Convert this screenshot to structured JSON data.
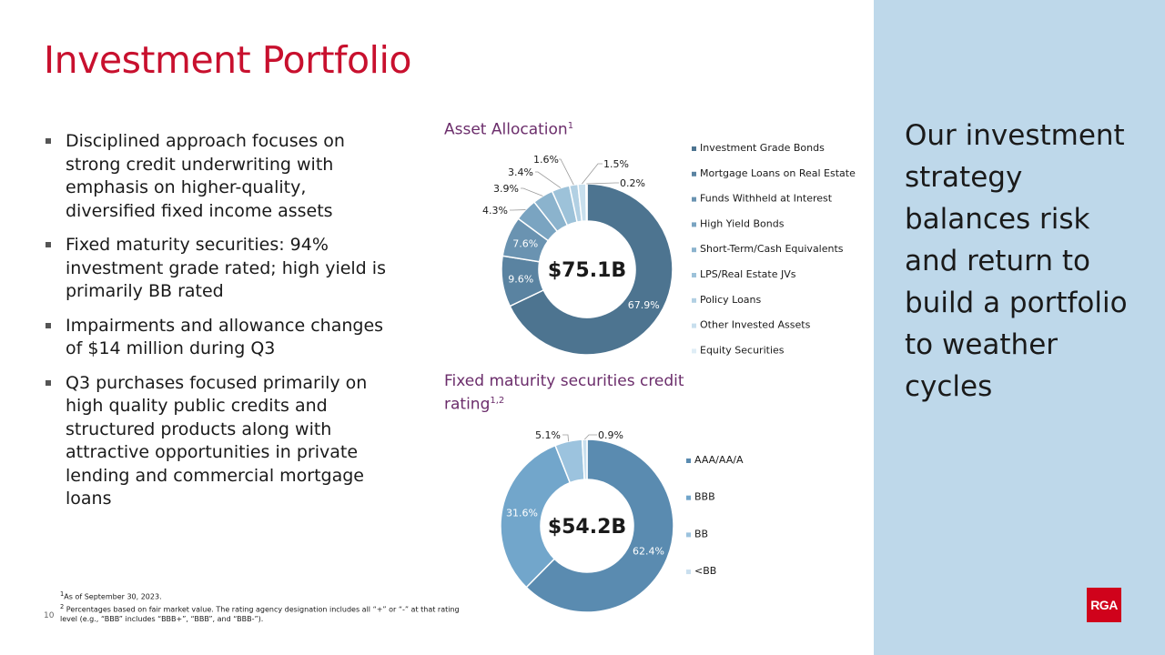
{
  "title": "Investment Portfolio",
  "bullets": [
    "Disciplined approach focuses on strong credit underwriting with emphasis on higher-quality, diversified fixed income assets",
    "Fixed maturity securities: 94% investment grade rated; high yield is primarily BB rated",
    "Impairments and allowance changes of $14 million during Q3",
    "Q3 purchases focused primarily on high quality public credits and structured products along with attractive opportunities in private lending and commercial mortgage loans"
  ],
  "sidebar": {
    "text": "Our investment strategy balances risk and return to build a portfolio to weather cycles"
  },
  "footnotes": {
    "note1": "As of September 30, 2023.",
    "note2": "Percentages based on fair market value. The rating agency designation includes all “+” or “-” at that rating level (e.g., “BBB” includes “BBB+”, “BBB”, and “BBB-”).",
    "sup1": "1",
    "sup2": "2"
  },
  "page_number": "10",
  "logo_text": "RGA",
  "chart_data": [
    {
      "type": "pie",
      "variant": "donut",
      "title": "Asset Allocation",
      "title_sup": "1",
      "center_label": "$75.1B",
      "categories": [
        "Investment Grade Bonds",
        "Mortgage Loans on Real Estate",
        "Funds Withheld at Interest",
        "High Yield Bonds",
        "Short-Term/Cash Equivalents",
        "LPS/Real Estate JVs",
        "Policy Loans",
        "Other Invested Assets",
        "Equity Securities"
      ],
      "values": [
        67.9,
        9.6,
        7.6,
        4.3,
        3.9,
        3.4,
        1.6,
        1.5,
        0.2
      ],
      "labels": [
        "67.9%",
        "9.6%",
        "7.6%",
        "4.3%",
        "3.9%",
        "3.4%",
        "1.6%",
        "1.5%",
        "0.2%"
      ],
      "colors": [
        "#4d7490",
        "#5a83a1",
        "#6a93b1",
        "#7aa4c1",
        "#8bb3cd",
        "#9dc2d9",
        "#b2d0e3",
        "#c8dfed",
        "#dfedf6"
      ],
      "legend_position": "right"
    },
    {
      "type": "pie",
      "variant": "donut",
      "title": "Fixed maturity securities credit rating",
      "title_sup": "1,2",
      "center_label": "$54.2B",
      "categories": [
        "AAA/AA/A",
        "BBB",
        "BB",
        "<BB"
      ],
      "values": [
        62.4,
        31.6,
        5.1,
        0.9
      ],
      "labels": [
        "62.4%",
        "31.6%",
        "5.1%",
        "0.9%"
      ],
      "colors": [
        "#5a8bb0",
        "#72a6cb",
        "#9cc3de",
        "#c9dfee"
      ],
      "legend_position": "right"
    }
  ]
}
